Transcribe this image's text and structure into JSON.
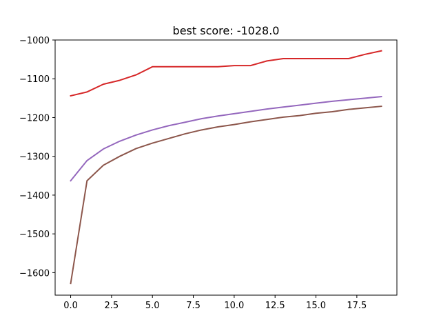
{
  "chart_data": {
    "type": "line",
    "title": "best score: -1028.0",
    "xlabel": "",
    "ylabel": "",
    "xlim": [
      -0.95,
      19.95
    ],
    "ylim": [
      -1658,
      -1000
    ],
    "grid": false,
    "x_ticks": [
      0.0,
      2.5,
      5.0,
      7.5,
      10.0,
      12.5,
      15.0,
      17.5
    ],
    "x_tick_labels": [
      "0.0",
      "2.5",
      "5.0",
      "7.5",
      "10.0",
      "12.5",
      "15.0",
      "17.5"
    ],
    "y_ticks": [
      -1600,
      -1500,
      -1400,
      -1300,
      -1200,
      -1100,
      -1000
    ],
    "y_tick_labels": [
      "−1600",
      "−1500",
      "−1400",
      "−1300",
      "−1200",
      "−1100",
      "−1000"
    ],
    "x": [
      0,
      1,
      2,
      3,
      4,
      5,
      6,
      7,
      8,
      9,
      10,
      11,
      12,
      13,
      14,
      15,
      16,
      17,
      18,
      19
    ],
    "series": [
      {
        "color": "#d62728",
        "values": [
          -1144,
          -1134,
          -1114,
          -1104,
          -1090,
          -1069,
          -1069,
          -1069,
          -1069,
          -1069,
          -1066,
          -1066,
          -1054,
          -1048,
          -1048,
          -1048,
          -1048,
          -1048,
          -1037,
          -1028
        ]
      },
      {
        "color": "#9467bd",
        "values": [
          -1363,
          -1311,
          -1281,
          -1261,
          -1245,
          -1232,
          -1221,
          -1212,
          -1203,
          -1196,
          -1190,
          -1184,
          -1178,
          -1173,
          -1168,
          -1163,
          -1158,
          -1154,
          -1150,
          -1146
        ]
      },
      {
        "color": "#8c564b",
        "values": [
          -1628,
          -1363,
          -1323,
          -1300,
          -1280,
          -1266,
          -1254,
          -1242,
          -1232,
          -1224,
          -1218,
          -1211,
          -1205,
          -1199,
          -1195,
          -1189,
          -1185,
          -1179,
          -1175,
          -1171
        ]
      }
    ]
  }
}
